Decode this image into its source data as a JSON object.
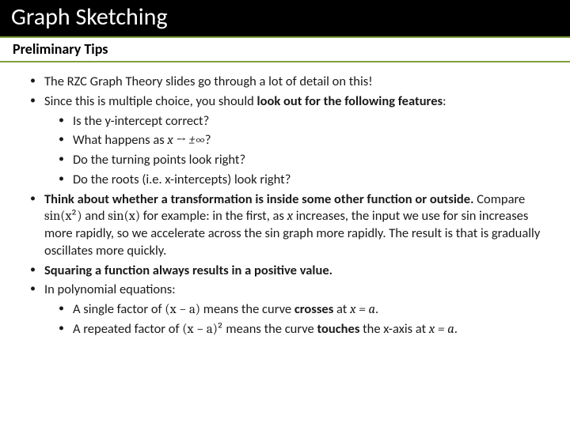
{
  "colors": {
    "title_bg": "#000000",
    "title_fg": "#ffffff",
    "subtitle_border": "#7f9e3e",
    "body_bg": "#ffffff",
    "body_fg": "#1a1a1a"
  },
  "title": "Graph Sketching",
  "subtitle": "Preliminary Tips",
  "bullets": {
    "b1": "The RZC Graph Theory slides go through a lot of detail on this!",
    "b2_a": "Since this is multiple choice, you should ",
    "b2_b": "look out for the following features",
    "b2_c": ":",
    "b2_sub1": "Is the y-intercept correct?",
    "b2_sub2_a": "What happens as ",
    "b2_sub2_b": "x → ±∞",
    "b2_sub2_c": "?",
    "b2_sub3": "Do the turning points look right?",
    "b2_sub4": "Do the roots (i.e. x-intercepts) look right?",
    "b3_a": "Think about whether a transformation is inside some other function or outside.",
    "b3_b": " Compare ",
    "b3_m1": "sin(x²)",
    "b3_c": " and ",
    "b3_m2": "sin(x)",
    "b3_d": "  for example: in the first, as ",
    "b3_m3": "x",
    "b3_e": " increases, the input we use for sin increases more rapidly, so we accelerate across the sin graph more rapidly. The result is that is gradually oscillates more quickly.",
    "b4": "Squaring a function always results in a positive value.",
    "b5": "In polynomial equations:",
    "b5_sub1_a": "A single factor of ",
    "b5_sub1_m1": "(x − a)",
    "b5_sub1_b": " means the curve ",
    "b5_sub1_c": "crosses",
    "b5_sub1_d": " at ",
    "b5_sub1_m2": "x = a",
    "b5_sub1_e": ".",
    "b5_sub2_a": "A repeated factor of ",
    "b5_sub2_m1": "(x − a)²",
    "b5_sub2_b": " means the curve ",
    "b5_sub2_c": "touches",
    "b5_sub2_d": " the x-axis at ",
    "b5_sub2_m2": "x = a",
    "b5_sub2_e": "."
  }
}
